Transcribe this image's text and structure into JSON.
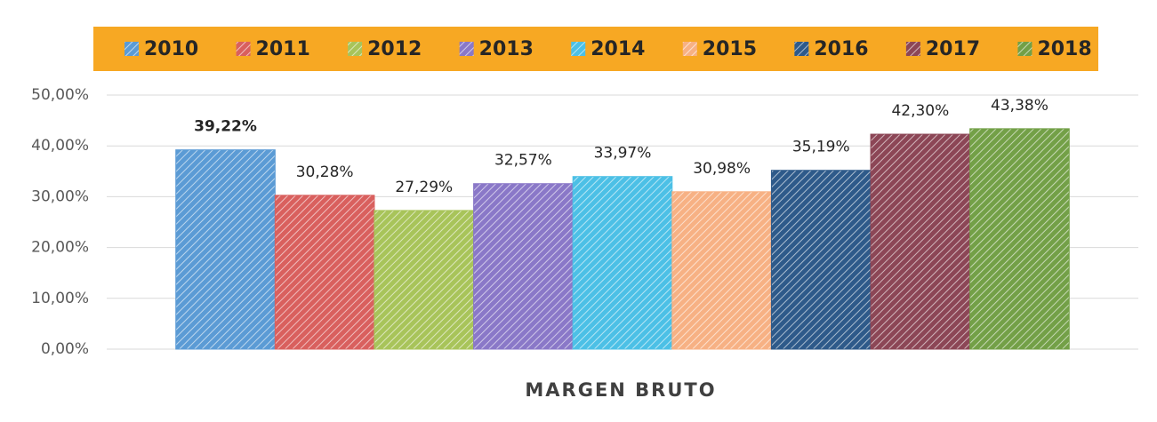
{
  "chart_data": {
    "type": "bar",
    "categories": [
      "MARGEN BRUTO"
    ],
    "series": [
      {
        "name": "2010",
        "color": "#5b9bd5",
        "values": [
          39.22
        ],
        "value_labels": [
          "39,22%"
        ]
      },
      {
        "name": "2011",
        "color": "#d9605e",
        "values": [
          30.28
        ],
        "value_labels": [
          "30,28%"
        ]
      },
      {
        "name": "2012",
        "color": "#a8c45a",
        "values": [
          27.29
        ],
        "value_labels": [
          "27,29%"
        ]
      },
      {
        "name": "2013",
        "color": "#8a78c8",
        "values": [
          32.57
        ],
        "value_labels": [
          "32,57%"
        ]
      },
      {
        "name": "2014",
        "color": "#4cc0e6",
        "values": [
          33.97
        ],
        "value_labels": [
          "33,97%"
        ]
      },
      {
        "name": "2015",
        "color": "#f7b184",
        "values": [
          30.98
        ],
        "value_labels": [
          "30,98%"
        ]
      },
      {
        "name": "2016",
        "color": "#2e5a8a",
        "values": [
          35.19
        ],
        "value_labels": [
          "35,19%"
        ]
      },
      {
        "name": "2017",
        "color": "#8c4656",
        "values": [
          42.3
        ],
        "value_labels": [
          "42,30%"
        ]
      },
      {
        "name": "2018",
        "color": "#73a047",
        "values": [
          43.38
        ],
        "value_labels": [
          "43,38%"
        ]
      }
    ],
    "ylim": [
      0,
      50
    ],
    "yticks": [
      {
        "value": 0,
        "label": "0,00%"
      },
      {
        "value": 10,
        "label": "10,00%"
      },
      {
        "value": 20,
        "label": "20,00%"
      },
      {
        "value": 30,
        "label": "30,00%"
      },
      {
        "value": 40,
        "label": "40,00%"
      },
      {
        "value": 50,
        "label": "50,00%"
      }
    ],
    "grid": true,
    "legend": "top",
    "legend_color": "#f7a823"
  }
}
